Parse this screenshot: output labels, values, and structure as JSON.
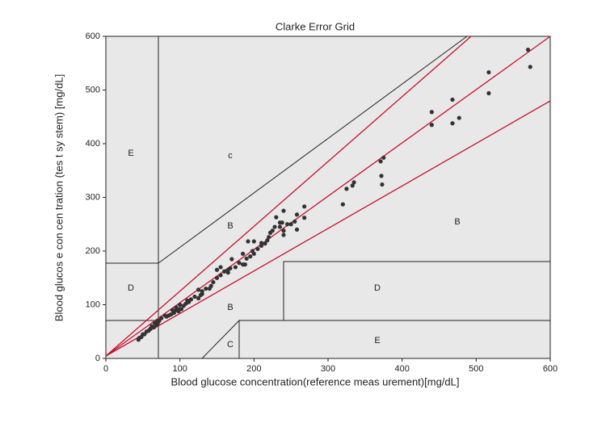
{
  "chart_data": {
    "type": "scatter",
    "title": "Clarke Error Grid",
    "x_label": "Blood glucose concentration(reference meas urement)[mg/dL]",
    "y_label": "Blood glucos e con cen tration (tes t sy stem) [mg/dL]",
    "xlim": [
      0,
      600
    ],
    "ylim": [
      0,
      600
    ],
    "xticks": [
      0,
      100,
      200,
      300,
      400,
      500,
      600
    ],
    "yticks": [
      0,
      100,
      200,
      300,
      400,
      500,
      600
    ],
    "color": "#333333",
    "annotations": [
      "E",
      "c",
      "B",
      "D",
      "B",
      "C",
      "D",
      "E",
      "B"
    ],
    "x": [
      570,
      573,
      517,
      517,
      468,
      468,
      477,
      440,
      440,
      375,
      371,
      372,
      373,
      335,
      333,
      325,
      320,
      268,
      268,
      258,
      258,
      255,
      245,
      240,
      240,
      240,
      238,
      235,
      230,
      228,
      225,
      222,
      220,
      218,
      215,
      210,
      205,
      200,
      198,
      195,
      192,
      190,
      188,
      185,
      180,
      175,
      170,
      168,
      165,
      160,
      155,
      150,
      145,
      142,
      140,
      135,
      130,
      128,
      125,
      120,
      115,
      112,
      108,
      105,
      102,
      100,
      98,
      95,
      92,
      90,
      88,
      85,
      82,
      80,
      75,
      72,
      70,
      68,
      65,
      62,
      60,
      58,
      55,
      52,
      50,
      48,
      45,
      44,
      70,
      66,
      95,
      100,
      110,
      125,
      150,
      165,
      185,
      200,
      210,
      235,
      250,
      155,
      130
    ],
    "values": [
      575,
      543,
      533,
      494,
      482,
      438,
      448,
      459,
      435,
      374,
      367,
      340,
      324,
      328,
      322,
      316,
      287,
      283,
      262,
      268,
      240,
      255,
      250,
      275,
      238,
      230,
      253,
      253,
      263,
      245,
      238,
      234,
      226,
      220,
      214,
      210,
      204,
      218,
      200,
      190,
      218,
      186,
      175,
      175,
      178,
      170,
      185,
      168,
      165,
      162,
      170,
      165,
      142,
      135,
      130,
      130,
      125,
      118,
      112,
      115,
      110,
      105,
      102,
      98,
      92,
      100,
      88,
      95,
      85,
      90,
      82,
      80,
      78,
      80,
      75,
      70,
      65,
      62,
      58,
      60,
      55,
      52,
      50,
      45,
      45,
      40,
      38,
      35,
      70,
      66,
      90,
      92,
      108,
      128,
      150,
      160,
      195,
      195,
      215,
      245,
      250,
      155,
      120
    ]
  }
}
